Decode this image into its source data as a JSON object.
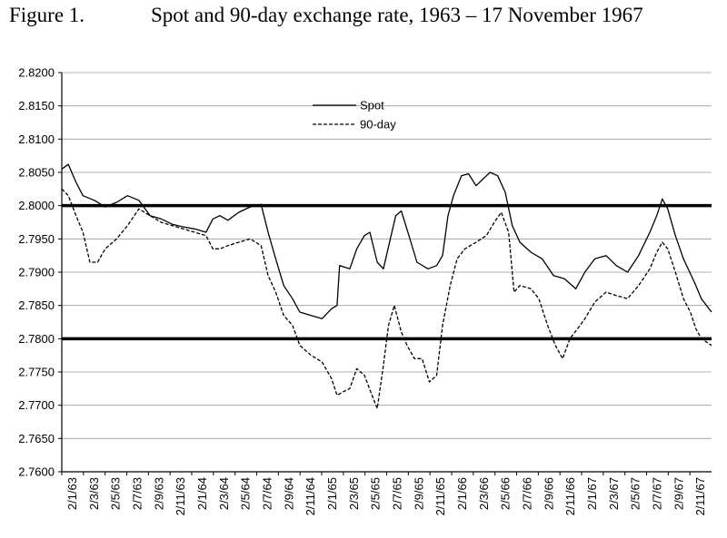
{
  "figure": {
    "number": "Figure 1.",
    "title": "Spot and 90-day exchange rate, 1963 – 17 November 1967"
  },
  "chart_data": {
    "type": "line",
    "title": "Spot and 90-day exchange rate, 1963 – 17 November 1967",
    "xlabel": "",
    "ylabel": "",
    "ylim": [
      2.76,
      2.82
    ],
    "yticks": [
      "2.7600",
      "2.7650",
      "2.7700",
      "2.7750",
      "2.7800",
      "2.7850",
      "2.7900",
      "2.7950",
      "2.8000",
      "2.8050",
      "2.8100",
      "2.8150",
      "2.8200"
    ],
    "xticks": [
      "2/1/63",
      "2/3/63",
      "2/5/63",
      "2/7/63",
      "2/9/63",
      "2/11/63",
      "2/1/64",
      "2/3/64",
      "2/5/64",
      "2/7/64",
      "2/9/64",
      "2/11/64",
      "2/1/65",
      "2/3/65",
      "2/5/65",
      "2/7/65",
      "2/9/65",
      "2/11/65",
      "2/1/66",
      "2/3/66",
      "2/5/66",
      "2/7/66",
      "2/9/66",
      "2/11/66",
      "2/1/67",
      "2/3/67",
      "2/5/67",
      "2/7/67",
      "2/9/67",
      "2/11/67"
    ],
    "grid": true,
    "legend": "top-center",
    "reference_lines": [
      2.8,
      2.78
    ],
    "series": [
      {
        "name": "Spot",
        "style": "solid",
        "color": "#000000",
        "values": [
          [
            "1963-01-02",
            2.8055
          ],
          [
            "1963-01-20",
            2.8062
          ],
          [
            "1963-02-10",
            2.8035
          ],
          [
            "1963-03-01",
            2.8015
          ],
          [
            "1963-04-01",
            2.8008
          ],
          [
            "1963-05-01",
            2.7998
          ],
          [
            "1963-06-01",
            2.8005
          ],
          [
            "1963-07-01",
            2.8015
          ],
          [
            "1963-08-01",
            2.8008
          ],
          [
            "1963-09-01",
            2.7985
          ],
          [
            "1963-10-01",
            2.798
          ],
          [
            "1963-11-01",
            2.7972
          ],
          [
            "1963-12-01",
            2.7968
          ],
          [
            "1964-01-01",
            2.7965
          ],
          [
            "1964-02-01",
            2.796
          ],
          [
            "1964-02-20",
            2.798
          ],
          [
            "1964-03-10",
            2.7985
          ],
          [
            "1964-04-01",
            2.7978
          ],
          [
            "1964-05-01",
            2.799
          ],
          [
            "1964-06-01",
            2.7998
          ],
          [
            "1964-07-01",
            2.8002
          ],
          [
            "1964-07-20",
            2.796
          ],
          [
            "1964-08-10",
            2.792
          ],
          [
            "1964-09-01",
            2.788
          ],
          [
            "1964-09-25",
            2.786
          ],
          [
            "1964-10-15",
            2.784
          ],
          [
            "1964-11-15",
            2.7835
          ],
          [
            "1964-12-15",
            2.783
          ],
          [
            "1965-01-10",
            2.7845
          ],
          [
            "1965-01-25",
            2.785
          ],
          [
            "1965-02-01",
            2.791
          ],
          [
            "1965-03-01",
            2.7905
          ],
          [
            "1965-03-20",
            2.7935
          ],
          [
            "1965-04-10",
            2.7955
          ],
          [
            "1965-04-25",
            2.796
          ],
          [
            "1965-05-15",
            2.7915
          ],
          [
            "1965-06-01",
            2.7905
          ],
          [
            "1965-06-20",
            2.795
          ],
          [
            "1965-07-05",
            2.7985
          ],
          [
            "1965-07-20",
            2.7992
          ],
          [
            "1965-08-10",
            2.7955
          ],
          [
            "1965-09-01",
            2.7915
          ],
          [
            "1965-10-01",
            2.7905
          ],
          [
            "1965-10-25",
            2.791
          ],
          [
            "1965-11-10",
            2.7925
          ],
          [
            "1965-11-25",
            2.7985
          ],
          [
            "1965-12-10",
            2.8015
          ],
          [
            "1966-01-01",
            2.8045
          ],
          [
            "1966-01-20",
            2.8048
          ],
          [
            "1966-02-10",
            2.803
          ],
          [
            "1966-03-01",
            2.804
          ],
          [
            "1966-03-20",
            2.805
          ],
          [
            "1966-04-10",
            2.8045
          ],
          [
            "1966-05-01",
            2.802
          ],
          [
            "1966-05-20",
            2.797
          ],
          [
            "1966-06-10",
            2.7945
          ],
          [
            "1966-07-10",
            2.793
          ],
          [
            "1966-08-10",
            2.792
          ],
          [
            "1966-09-10",
            2.7895
          ],
          [
            "1966-10-10",
            2.789
          ],
          [
            "1966-11-10",
            2.7875
          ],
          [
            "1966-12-05",
            2.79
          ],
          [
            "1967-01-01",
            2.792
          ],
          [
            "1967-02-01",
            2.7925
          ],
          [
            "1967-03-01",
            2.791
          ],
          [
            "1967-04-01",
            2.79
          ],
          [
            "1967-05-01",
            2.7925
          ],
          [
            "1967-06-01",
            2.796
          ],
          [
            "1967-06-20",
            2.7985
          ],
          [
            "1967-07-05",
            2.801
          ],
          [
            "1967-07-20",
            2.7995
          ],
          [
            "1967-08-10",
            2.7955
          ],
          [
            "1967-09-01",
            2.792
          ],
          [
            "1967-10-01",
            2.7885
          ],
          [
            "1967-10-20",
            2.786
          ],
          [
            "1967-11-17",
            2.784
          ]
        ]
      },
      {
        "name": "90-day",
        "style": "dashed",
        "color": "#000000",
        "values": [
          [
            "1963-01-02",
            2.8025
          ],
          [
            "1963-01-20",
            2.8015
          ],
          [
            "1963-02-10",
            2.7985
          ],
          [
            "1963-03-01",
            2.796
          ],
          [
            "1963-03-20",
            2.7915
          ],
          [
            "1963-04-10",
            2.7915
          ],
          [
            "1963-05-01",
            2.7935
          ],
          [
            "1963-06-01",
            2.795
          ],
          [
            "1963-07-01",
            2.797
          ],
          [
            "1963-08-01",
            2.7995
          ],
          [
            "1963-09-01",
            2.7985
          ],
          [
            "1963-10-01",
            2.7975
          ],
          [
            "1963-11-01",
            2.797
          ],
          [
            "1963-12-01",
            2.7965
          ],
          [
            "1964-01-01",
            2.796
          ],
          [
            "1964-02-01",
            2.7955
          ],
          [
            "1964-02-20",
            2.7935
          ],
          [
            "1964-03-10",
            2.7935
          ],
          [
            "1964-04-01",
            2.794
          ],
          [
            "1964-05-01",
            2.7945
          ],
          [
            "1964-06-01",
            2.795
          ],
          [
            "1964-07-01",
            2.794
          ],
          [
            "1964-07-20",
            2.7895
          ],
          [
            "1964-08-10",
            2.787
          ],
          [
            "1964-09-01",
            2.7835
          ],
          [
            "1964-09-25",
            2.782
          ],
          [
            "1964-10-15",
            2.779
          ],
          [
            "1964-11-15",
            2.7775
          ],
          [
            "1964-12-15",
            2.7765
          ],
          [
            "1965-01-10",
            2.774
          ],
          [
            "1965-01-25",
            2.7715
          ],
          [
            "1965-02-10",
            2.772
          ],
          [
            "1965-03-01",
            2.7725
          ],
          [
            "1965-03-20",
            2.7755
          ],
          [
            "1965-04-10",
            2.7745
          ],
          [
            "1965-05-01",
            2.7715
          ],
          [
            "1965-05-15",
            2.7695
          ],
          [
            "1965-06-01",
            2.776
          ],
          [
            "1965-06-15",
            2.782
          ],
          [
            "1965-07-01",
            2.785
          ],
          [
            "1965-07-20",
            2.781
          ],
          [
            "1965-08-05",
            2.779
          ],
          [
            "1965-08-25",
            2.777
          ],
          [
            "1965-09-15",
            2.777
          ],
          [
            "1965-10-05",
            2.7735
          ],
          [
            "1965-10-25",
            2.7745
          ],
          [
            "1965-11-10",
            2.782
          ],
          [
            "1965-12-01",
            2.788
          ],
          [
            "1965-12-20",
            2.792
          ],
          [
            "1966-01-10",
            2.7935
          ],
          [
            "1966-02-10",
            2.7945
          ],
          [
            "1966-03-10",
            2.7955
          ],
          [
            "1966-04-01",
            2.7975
          ],
          [
            "1966-04-20",
            2.799
          ],
          [
            "1966-05-10",
            2.796
          ],
          [
            "1966-05-25",
            2.787
          ],
          [
            "1966-06-10",
            2.788
          ],
          [
            "1966-07-10",
            2.7875
          ],
          [
            "1966-08-01",
            2.786
          ],
          [
            "1966-08-25",
            2.782
          ],
          [
            "1966-09-15",
            2.779
          ],
          [
            "1966-10-05",
            2.777
          ],
          [
            "1966-10-25",
            2.78
          ],
          [
            "1966-11-15",
            2.7815
          ],
          [
            "1966-12-05",
            2.783
          ],
          [
            "1967-01-01",
            2.7855
          ],
          [
            "1967-02-01",
            2.787
          ],
          [
            "1967-03-01",
            2.7865
          ],
          [
            "1967-04-01",
            2.786
          ],
          [
            "1967-05-01",
            2.788
          ],
          [
            "1967-06-01",
            2.7905
          ],
          [
            "1967-06-20",
            2.793
          ],
          [
            "1967-07-05",
            2.7945
          ],
          [
            "1967-07-20",
            2.7935
          ],
          [
            "1967-08-10",
            2.79
          ],
          [
            "1967-09-01",
            2.786
          ],
          [
            "1967-09-20",
            2.784
          ],
          [
            "1967-10-05",
            2.7815
          ],
          [
            "1967-10-20",
            2.78
          ],
          [
            "1967-11-17",
            2.779
          ]
        ]
      }
    ]
  }
}
